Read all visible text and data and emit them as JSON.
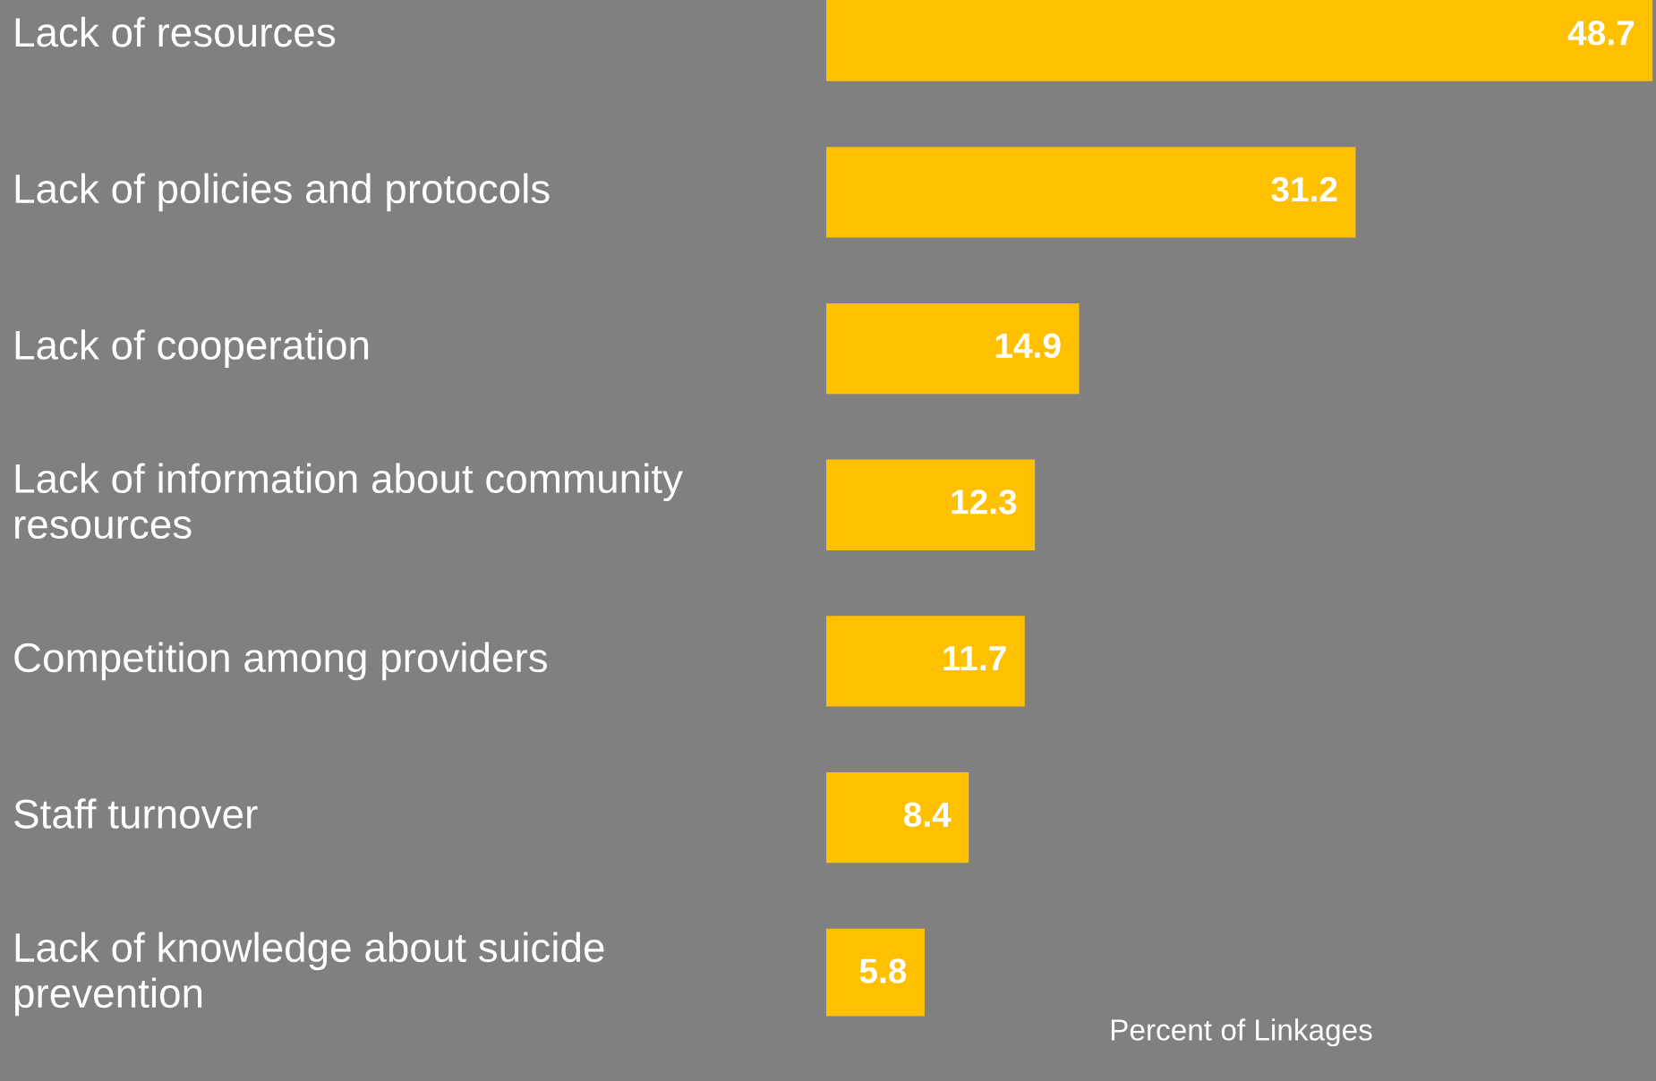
{
  "chart_data": {
    "type": "bar",
    "orientation": "horizontal",
    "categories": [
      "Lack of resources",
      "Lack of policies and protocols",
      "Lack of cooperation",
      "Lack of information about community resources",
      "Competition among providers",
      "Staff turnover",
      "Lack of knowledge about suicide prevention"
    ],
    "values": [
      48.7,
      31.2,
      14.9,
      12.3,
      11.7,
      8.4,
      5.8
    ],
    "color": "#ffc000",
    "xlabel": "Percent of Linkages",
    "xlim": [
      0,
      48.9
    ],
    "data_labels": true,
    "tick_labels": "y"
  }
}
